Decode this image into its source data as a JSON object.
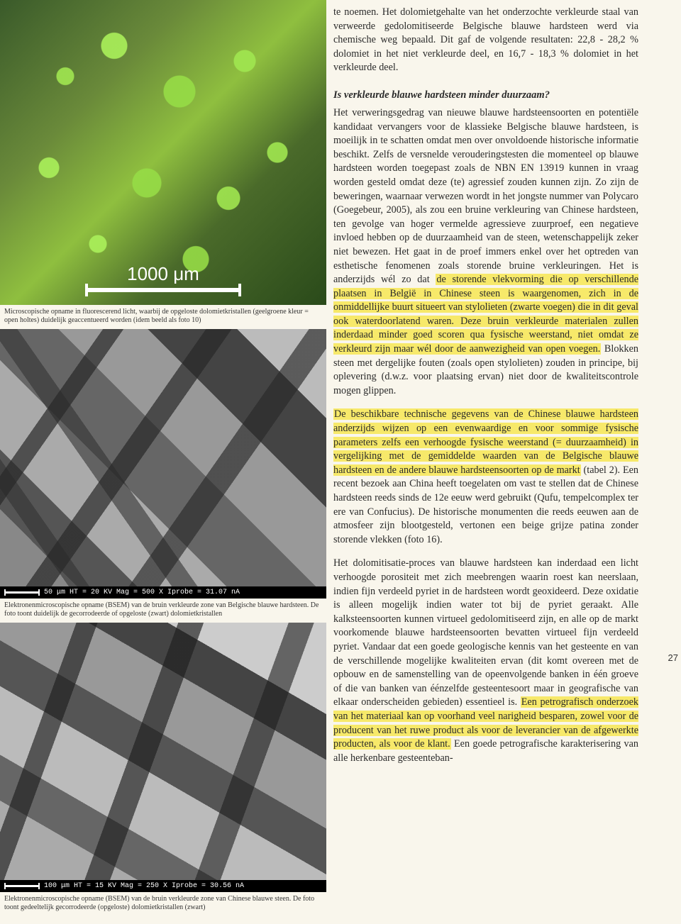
{
  "page_number": "27",
  "figure1": {
    "scalebar_label": "1000 μm",
    "caption": "Microscopische opname in fluorescerend licht, waarbij de opgeloste dolomietkristallen (geelgroene kleur = open holtes) duidelijk geaccentueerd worden (idem beeld als foto 10)"
  },
  "figure2": {
    "sem_footer": "50 μm    HT = 20 KV   Mag = 500 X   Iprobe = 31.07 nA",
    "caption": "Elektronenmicroscopische opname (BSEM) van de bruin verkleurde zone van Belgische blauwe hardsteen. De foto toont duidelijk de gecorrodeerde of opgeloste (zwart) dolomietkristallen"
  },
  "figure3": {
    "sem_footer": "100 μm   HT = 15 KV   Mag = 250 X   Iprobe = 30.56 nA",
    "caption": "Elektronenmicroscopische opname (BSEM) van de bruin verkleurde zone van Chinese blauwe steen. De foto toont gedeeltelijk gecorrodeerde (opgeloste) dolomietkristallen (zwart)"
  },
  "text": {
    "intro": "te noemen. Het dolomietgehalte van het onderzochte verkleurde staal van verweerde gedolomitiseerde Belgische blauwe hardsteen werd via chemische weg bepaald. Dit gaf de volgende resultaten: 22,8 - 28,2 % dolomiet in het niet verkleurde deel, en 16,7 - 18,3 % dolomiet in het verkleurde deel.",
    "heading": "Is verkleurde blauwe hardsteen minder duurzaam?",
    "p1_a": "Het verweringsgedrag van nieuwe blauwe hardsteensoorten en potentiële kandidaat vervangers voor de klassieke Belgische blauwe hardsteen, is moeilijk in te schatten omdat men over onvoldoende historische informatie beschikt. Zelfs de versnelde verouderingstesten die momenteel op blauwe hardsteen worden toegepast zoals de NBN EN 13919 kunnen in vraag worden gesteld omdat deze (te) agressief zouden kunnen zijn. Zo zijn de beweringen, waarnaar verwezen wordt in het jongste nummer van Polycaro (Goegebeur, 2005), als zou een bruine verkleuring van Chinese hardsteen, ten gevolge van hoger vermelde agressieve zuurproef, een negatieve invloed hebben op de duurzaamheid van de steen, wetenschappelijk zeker niet bewezen. Het gaat in de proef immers enkel over het optreden van esthetische fenomenen zoals storende bruine verkleuringen. Het is anderzijds wél zo dat ",
    "p1_hl": "de storende vlekvorming die op verschillende plaatsen in België in Chinese steen is waargenomen, zich in de onmiddellijke buurt situeert van stylolieten (zwarte voegen) die in dit geval ook waterdoorlatend waren. Deze bruin verkleurde materialen zullen inderdaad minder goed scoren qua fysische weerstand, niet omdat ze verkleurd zijn maar wél door de aanwezigheid van open voegen.",
    "p1_b": " Blokken steen met dergelijke fouten (zoals open stylolieten) zouden in principe, bij oplevering (d.w.z. voor plaatsing ervan) niet door de kwaliteitscontrole mogen glippen.",
    "p2_hl": "De beschikbare technische gegevens van de Chinese blauwe hardsteen anderzijds wijzen op een evenwaardige en voor sommige fysische parameters zelfs een verhoogde fysische weerstand (= duurzaamheid) in vergelijking met de gemiddelde waarden van de Belgische blauwe hardsteen en de andere blauwe hardsteensoorten op de markt",
    "p2_b": " (tabel 2). Een recent bezoek aan China heeft toegelaten om vast te stellen dat de Chinese hardsteen reeds sinds de 12e eeuw werd gebruikt (Qufu, tempelcomplex ter ere van Confucius). De historische monumenten die reeds eeuwen aan de atmosfeer zijn blootgesteld, vertonen een beige grijze patina zonder storende vlekken (foto 16).",
    "p3_a": "Het dolomitisatie-proces van blauwe hardsteen kan inderdaad een licht verhoogde porositeit met zich meebrengen waarin roest kan neerslaan, indien fijn verdeeld pyriet in de hardsteen wordt geoxideerd. Deze oxidatie is alleen mogelijk indien water tot bij de pyriet geraakt. Alle kalksteensoorten kunnen virtueel gedolomitiseerd zijn, en alle op de markt voorkomende blauwe hardsteensoorten bevatten virtueel fijn verdeeld pyriet. Vandaar dat een goede geologische kennis van het gesteente en van de verschillende mogelijke kwaliteiten ervan (dit komt overeen met de opbouw en de samenstelling van de opeenvolgende banken in één groeve of die van banken van éénzelfde gesteentesoort maar in geografische van elkaar onderscheiden gebieden) essentieel is. ",
    "p3_hl": "Een petrografisch onderzoek van het materiaal kan op voorhand veel narigheid besparen, zowel voor de producent van het ruwe product als voor de leverancier van de afgewerkte producten, als voor de klant.",
    "p3_b": " Een goede petrografische karakterisering van alle herkenbare gesteenteban-"
  },
  "colors": {
    "page_bg": "#f9f6ec",
    "highlight": "#f7e96a",
    "text": "#2a2a2a"
  }
}
